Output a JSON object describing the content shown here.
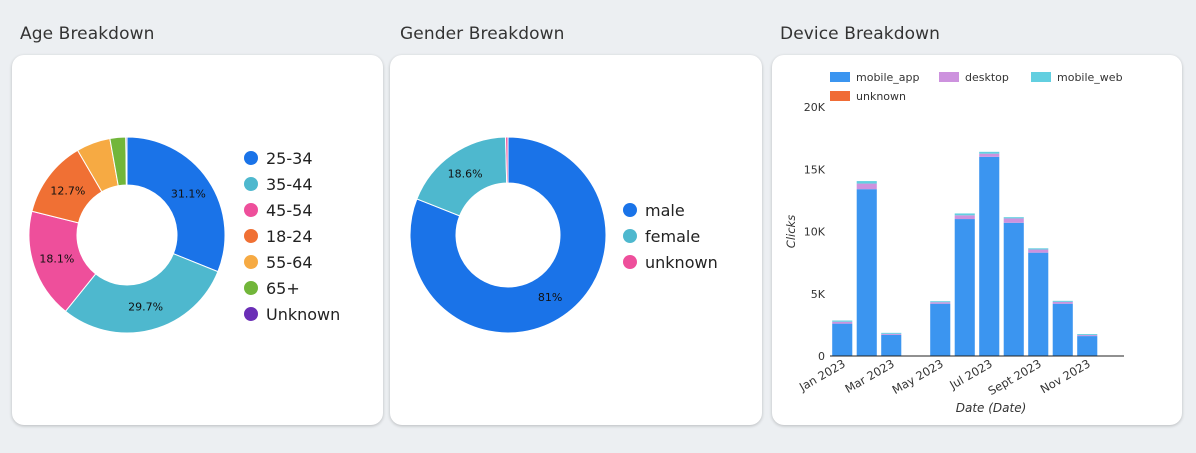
{
  "sections": {
    "age": {
      "title": "Age Breakdown"
    },
    "gender": {
      "title": "Gender Breakdown"
    },
    "device": {
      "title": "Device Breakdown"
    }
  },
  "colors": {
    "blue": "#1a73e8",
    "teal": "#4eb8ce",
    "pink": "#ee4f9b",
    "orange": "#f07034",
    "yellow": "#f6aa43",
    "green": "#72b63a",
    "purple": "#6a2eb6",
    "mobile_app": "#3b95f0",
    "desktop": "#cd92de",
    "mobile_web": "#62cfe0",
    "unknown_dev": "#f06c36"
  },
  "chart_data": [
    {
      "type": "pie",
      "donut": true,
      "title": "Age Breakdown",
      "labels": [
        "25-34",
        "35-44",
        "45-54",
        "18-24",
        "55-64",
        "65+",
        "Unknown"
      ],
      "values": [
        31.1,
        29.7,
        18.1,
        12.7,
        5.6,
        2.6,
        0.2
      ],
      "slice_labels": [
        "31.1%",
        "29.7%",
        "18.1%",
        "12.7%",
        "",
        "",
        ""
      ],
      "colors": [
        "#1a73e8",
        "#4eb8ce",
        "#ee4f9b",
        "#f07034",
        "#f6aa43",
        "#72b63a",
        "#6a2eb6"
      ],
      "legend": "right"
    },
    {
      "type": "pie",
      "donut": true,
      "title": "Gender Breakdown",
      "labels": [
        "male",
        "female",
        "unknown"
      ],
      "values": [
        81,
        18.6,
        0.4
      ],
      "slice_labels": [
        "81%",
        "18.6%",
        ""
      ],
      "colors": [
        "#1a73e8",
        "#4eb8ce",
        "#ee4f9b"
      ],
      "legend": "right"
    },
    {
      "type": "bar",
      "stacked": true,
      "title": "Device Breakdown",
      "xlabel": "Date (Date)",
      "ylabel": "Clicks",
      "ylim": [
        0,
        20000
      ],
      "yticks": [
        0,
        5000,
        10000,
        15000,
        20000
      ],
      "ytick_labels": [
        "0",
        "5K",
        "10K",
        "15K",
        "20K"
      ],
      "categories": [
        "Jan 2023",
        "Feb 2023",
        "Mar 2023",
        "Apr 2023",
        "May 2023",
        "Jun 2023",
        "Jul 2023",
        "Aug 2023",
        "Sept 2023",
        "Oct 2023",
        "Nov 2023",
        "Dec 2023"
      ],
      "xtick_labels": [
        "Jan 2023",
        "",
        "Mar 2023",
        "",
        "May 2023",
        "",
        "Jul 2023",
        "",
        "Sept 2023",
        "",
        "Nov 2023",
        ""
      ],
      "series": [
        {
          "name": "mobile_app",
          "values": [
            2600,
            13400,
            1700,
            0,
            4200,
            11000,
            16000,
            10700,
            8300,
            4200,
            1600,
            0
          ]
        },
        {
          "name": "desktop",
          "values": [
            150,
            450,
            80,
            0,
            120,
            300,
            250,
            350,
            250,
            150,
            80,
            0
          ]
        },
        {
          "name": "mobile_web",
          "values": [
            100,
            200,
            80,
            0,
            80,
            150,
            150,
            100,
            100,
            80,
            80,
            0
          ]
        },
        {
          "name": "unknown",
          "values": [
            0,
            0,
            0,
            0,
            0,
            0,
            0,
            0,
            0,
            0,
            0,
            0
          ]
        }
      ],
      "legend": "top"
    }
  ]
}
